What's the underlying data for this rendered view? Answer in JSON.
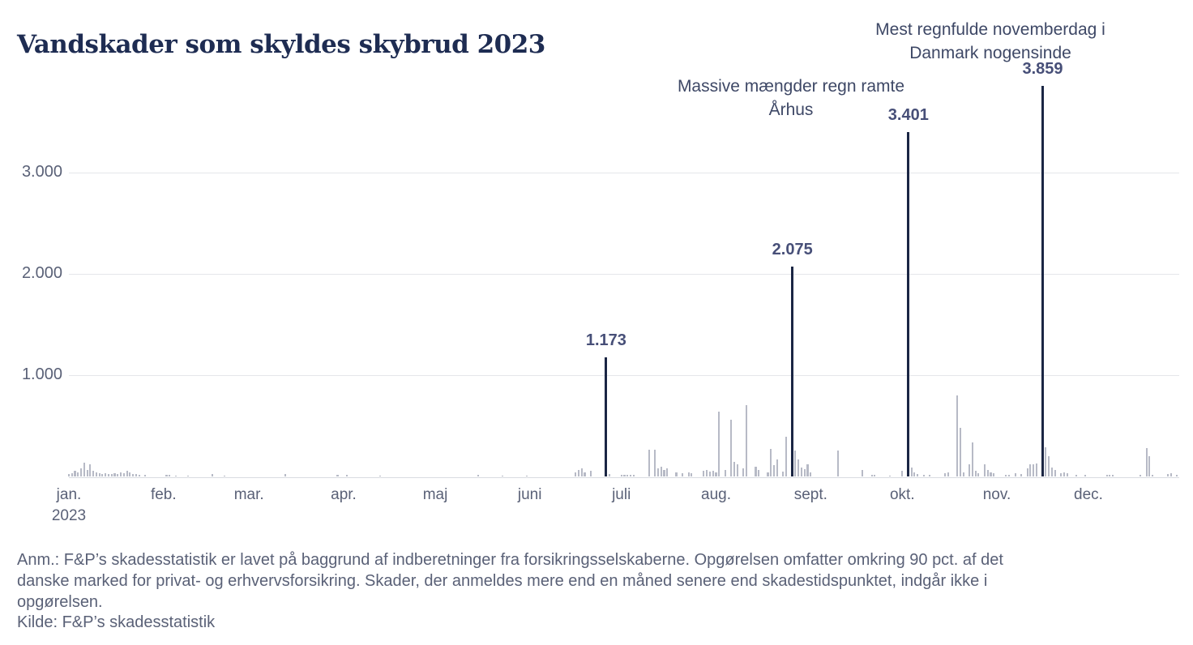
{
  "title": "Vandskader som skyldes skybrud 2023",
  "chart_data": {
    "type": "bar",
    "title": "Vandskader som skyldes skybrud 2023",
    "xlabel": "",
    "ylabel": "",
    "x_axis": {
      "months": [
        "jan.",
        "feb.",
        "mar.",
        "apr.",
        "maj",
        "juni",
        "juli",
        "aug.",
        "sept.",
        "okt.",
        "nov.",
        "dec."
      ],
      "year_label": "2023",
      "month_start_days": [
        1,
        32,
        60,
        91,
        121,
        152,
        182,
        213,
        244,
        274,
        305,
        335
      ]
    },
    "y_axis": {
      "ticks": [
        {
          "value": 1000,
          "label": "1.000"
        },
        {
          "value": 2000,
          "label": "2.000"
        },
        {
          "value": 3000,
          "label": "3.000"
        }
      ],
      "ylim": [
        0,
        4000
      ],
      "grid": true
    },
    "colors": {
      "bar": "#b7bac6",
      "highlight_bar": "#1b2644",
      "grid": "#e5e6ea",
      "title_text": "#1e2c52",
      "annotation_text": "#3e4866",
      "value_label_text": "#474f78",
      "axis_text": "#5a6177"
    },
    "points": [
      [
        1,
        24
      ],
      [
        2,
        32
      ],
      [
        3,
        56
      ],
      [
        4,
        40
      ],
      [
        5,
        80
      ],
      [
        6,
        140
      ],
      [
        7,
        64
      ],
      [
        8,
        123
      ],
      [
        9,
        56
      ],
      [
        10,
        40
      ],
      [
        11,
        32
      ],
      [
        12,
        27
      ],
      [
        13,
        32
      ],
      [
        14,
        27
      ],
      [
        15,
        21
      ],
      [
        16,
        32
      ],
      [
        17,
        27
      ],
      [
        18,
        43
      ],
      [
        19,
        32
      ],
      [
        20,
        56
      ],
      [
        21,
        43
      ],
      [
        22,
        27
      ],
      [
        23,
        21
      ],
      [
        24,
        16
      ],
      [
        26,
        13
      ],
      [
        33,
        16
      ],
      [
        34,
        13
      ],
      [
        36,
        10
      ],
      [
        40,
        10
      ],
      [
        48,
        21
      ],
      [
        52,
        10
      ],
      [
        72,
        25
      ],
      [
        89,
        16
      ],
      [
        92,
        13
      ],
      [
        103,
        10
      ],
      [
        135,
        13
      ],
      [
        143,
        10
      ],
      [
        151,
        10
      ],
      [
        167,
        40
      ],
      [
        168,
        64
      ],
      [
        169,
        80
      ],
      [
        170,
        40
      ],
      [
        172,
        56
      ],
      [
        178,
        25
      ],
      [
        182,
        13
      ],
      [
        183,
        16
      ],
      [
        184,
        13
      ],
      [
        185,
        16
      ],
      [
        186,
        13
      ],
      [
        191,
        266
      ],
      [
        193,
        266
      ],
      [
        194,
        80
      ],
      [
        195,
        96
      ],
      [
        196,
        64
      ],
      [
        197,
        80
      ],
      [
        200,
        40
      ],
      [
        202,
        32
      ],
      [
        204,
        40
      ],
      [
        205,
        32
      ],
      [
        209,
        56
      ],
      [
        210,
        64
      ],
      [
        211,
        48
      ],
      [
        212,
        56
      ],
      [
        213,
        40
      ],
      [
        214,
        640
      ],
      [
        216,
        64
      ],
      [
        218,
        560
      ],
      [
        219,
        145
      ],
      [
        220,
        120
      ],
      [
        222,
        80
      ],
      [
        223,
        706
      ],
      [
        226,
        95
      ],
      [
        227,
        65
      ],
      [
        230,
        40
      ],
      [
        231,
        272
      ],
      [
        232,
        112
      ],
      [
        233,
        170
      ],
      [
        235,
        50
      ],
      [
        236,
        390
      ],
      [
        239,
        256
      ],
      [
        240,
        170
      ],
      [
        241,
        90
      ],
      [
        242,
        69
      ],
      [
        243,
        123
      ],
      [
        244,
        43
      ],
      [
        253,
        256
      ],
      [
        261,
        64
      ],
      [
        264,
        16
      ],
      [
        265,
        16
      ],
      [
        270,
        12
      ],
      [
        274,
        56
      ],
      [
        277,
        85
      ],
      [
        278,
        40
      ],
      [
        279,
        25
      ],
      [
        281,
        16
      ],
      [
        283,
        20
      ],
      [
        288,
        32
      ],
      [
        289,
        40
      ],
      [
        292,
        800
      ],
      [
        293,
        478
      ],
      [
        294,
        40
      ],
      [
        296,
        117
      ],
      [
        297,
        336
      ],
      [
        298,
        53
      ],
      [
        299,
        32
      ],
      [
        301,
        123
      ],
      [
        302,
        64
      ],
      [
        303,
        40
      ],
      [
        304,
        32
      ],
      [
        308,
        20
      ],
      [
        309,
        20
      ],
      [
        311,
        32
      ],
      [
        313,
        27
      ],
      [
        315,
        80
      ],
      [
        316,
        120
      ],
      [
        317,
        120
      ],
      [
        318,
        130
      ],
      [
        321,
        290
      ],
      [
        322,
        197
      ],
      [
        323,
        90
      ],
      [
        324,
        64
      ],
      [
        326,
        30
      ],
      [
        327,
        40
      ],
      [
        328,
        30
      ],
      [
        331,
        16
      ],
      [
        334,
        13
      ],
      [
        341,
        20
      ],
      [
        342,
        20
      ],
      [
        343,
        16
      ],
      [
        352,
        20
      ],
      [
        354,
        277
      ],
      [
        355,
        197
      ],
      [
        356,
        13
      ],
      [
        361,
        25
      ],
      [
        362,
        32
      ],
      [
        364,
        16
      ]
    ],
    "highlights": [
      {
        "day": 177,
        "value": 1173,
        "label": "1.173"
      },
      {
        "day": 238,
        "value": 2075,
        "label": "2.075"
      },
      {
        "day": 276,
        "value": 3401,
        "label": "3.401"
      },
      {
        "day": 320,
        "value": 3859,
        "label": "3.859"
      }
    ],
    "annotations": [
      {
        "day": 276,
        "lines": [
          "Massive mængder regn ramte",
          "Århus"
        ]
      },
      {
        "day": 320,
        "lines": [
          "Mest regnfulde novemberdag i",
          "Danmark nogensinde"
        ]
      }
    ]
  },
  "footnote_lines": [
    "Anm.: F&P’s skadesstatistik er lavet på baggrund af indberetninger fra forsikringsselskaberne. Opgørelsen omfatter omkring 90 pct. af det",
    "danske marked for privat- og erhvervsforsikring. Skader, der anmeldes mere end en måned senere end skadestidspunktet, indgår ikke i",
    "opgørelsen."
  ],
  "source": "Kilde: F&P’s skadesstatistik"
}
